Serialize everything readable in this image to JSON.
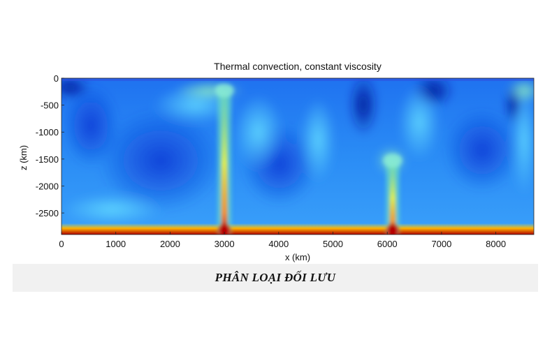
{
  "chart_data": {
    "type": "heatmap",
    "title": "Thermal convection, constant viscosity",
    "xlabel": "x (km)",
    "ylabel": "z (km)",
    "xlim": [
      0,
      8700
    ],
    "ylim": [
      -2900,
      0
    ],
    "x_ticks": [
      "0",
      "1000",
      "2000",
      "3000",
      "4000",
      "5000",
      "6000",
      "7000",
      "8000"
    ],
    "y_ticks": [
      "0",
      "-500",
      "-1000",
      "-1500",
      "-2000",
      "-2500"
    ],
    "colormap": [
      "#00008f",
      "#0050ff",
      "#00c8ff",
      "#7fff80",
      "#ffd000",
      "#ff3000",
      "#800000"
    ],
    "plumes": [
      {
        "x_km": 3000,
        "z_top_km": -150
      },
      {
        "x_km": 6100,
        "z_top_km": -1450
      }
    ]
  },
  "caption": "PHÂN LOẠI ĐỐI LƯU"
}
